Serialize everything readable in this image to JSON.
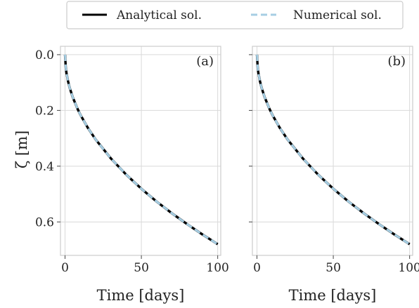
{
  "legend": {
    "items": [
      {
        "label": "Analytical sol.",
        "color": "#000000",
        "style": "solid"
      },
      {
        "label": "Numerical sol.",
        "color": "#a6cee3",
        "style": "dashed"
      }
    ]
  },
  "y_axis_title": "ζ [m]",
  "chart_data": [
    {
      "type": "line",
      "panel_label": "(a)",
      "xlabel": "Time [days]",
      "ylabel": "ζ [m]",
      "xlim": [
        -3,
        102
      ],
      "ylim": [
        0.72,
        -0.03
      ],
      "y_inverted": true,
      "xticks": [
        0,
        50,
        100
      ],
      "yticks": [
        0.0,
        0.2,
        0.4,
        0.6
      ],
      "ytick_labels": [
        "0.0",
        "0.2",
        "0.4",
        "0.6"
      ],
      "grid": true,
      "series": [
        {
          "name": "Analytical sol.",
          "color": "#000000",
          "x": [
            0,
            0.5,
            1,
            2,
            3,
            5,
            8,
            10,
            15,
            20,
            30,
            40,
            50,
            60,
            70,
            80,
            90,
            100
          ],
          "y": [
            0.0,
            0.048,
            0.068,
            0.096,
            0.118,
            0.152,
            0.192,
            0.215,
            0.263,
            0.304,
            0.372,
            0.43,
            0.481,
            0.527,
            0.569,
            0.608,
            0.645,
            0.68
          ]
        },
        {
          "name": "Numerical sol.",
          "color": "#a6cee3",
          "x": [
            0,
            0.5,
            1,
            2,
            3,
            5,
            8,
            10,
            15,
            20,
            30,
            40,
            50,
            60,
            70,
            80,
            90,
            100
          ],
          "y": [
            0.0,
            0.048,
            0.068,
            0.096,
            0.118,
            0.152,
            0.192,
            0.215,
            0.263,
            0.304,
            0.372,
            0.43,
            0.481,
            0.527,
            0.569,
            0.608,
            0.645,
            0.68
          ]
        }
      ]
    },
    {
      "type": "line",
      "panel_label": "(b)",
      "xlabel": "Time [days]",
      "ylabel": "",
      "xlim": [
        -3,
        102
      ],
      "ylim": [
        0.72,
        -0.03
      ],
      "y_inverted": true,
      "xticks": [
        0,
        50,
        100
      ],
      "yticks": [
        0.0,
        0.2,
        0.4,
        0.6
      ],
      "ytick_labels": [],
      "grid": true,
      "series": [
        {
          "name": "Analytical sol.",
          "color": "#000000",
          "x": [
            0,
            0.5,
            1,
            2,
            3,
            5,
            8,
            10,
            15,
            20,
            30,
            40,
            50,
            60,
            70,
            80,
            90,
            100
          ],
          "y": [
            0.0,
            0.048,
            0.068,
            0.096,
            0.118,
            0.152,
            0.192,
            0.215,
            0.263,
            0.304,
            0.372,
            0.43,
            0.481,
            0.527,
            0.569,
            0.608,
            0.645,
            0.68
          ]
        },
        {
          "name": "Numerical sol.",
          "color": "#a6cee3",
          "x": [
            0,
            0.5,
            1,
            2,
            3,
            5,
            8,
            10,
            15,
            20,
            30,
            40,
            50,
            60,
            70,
            80,
            90,
            100
          ],
          "y": [
            0.0,
            0.048,
            0.068,
            0.096,
            0.118,
            0.152,
            0.192,
            0.215,
            0.263,
            0.304,
            0.372,
            0.43,
            0.481,
            0.527,
            0.569,
            0.608,
            0.645,
            0.68
          ]
        }
      ]
    }
  ]
}
